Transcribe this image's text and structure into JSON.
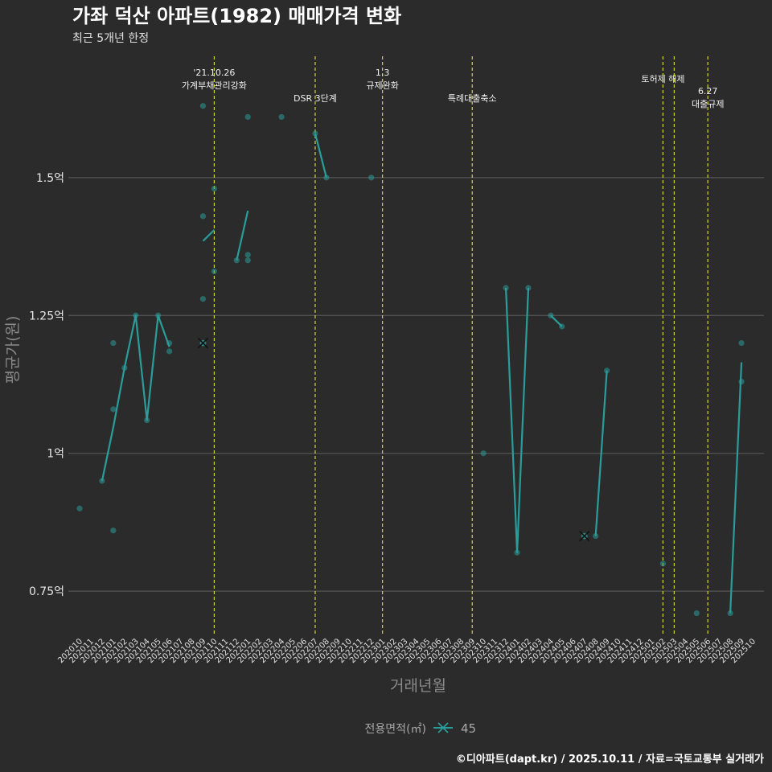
{
  "chart_data": {
    "type": "line",
    "title": "가좌 덕산 아파트(1982) 매매가격 변화",
    "subtitle": "최근 5개년 한정",
    "xlabel": "거래년월",
    "ylabel": "평균가(원)",
    "ylim": [
      0.67,
      1.72
    ],
    "y_ticks": [
      {
        "value": 0.75,
        "label": "0.75억"
      },
      {
        "value": 1.0,
        "label": "1억"
      },
      {
        "value": 1.25,
        "label": "1.25억"
      },
      {
        "value": 1.5,
        "label": "1.5억"
      }
    ],
    "categories": [
      "202010",
      "202011",
      "202012",
      "202101",
      "202102",
      "202103",
      "202104",
      "202105",
      "202106",
      "202107",
      "202108",
      "202109",
      "202110",
      "202111",
      "202112",
      "202201",
      "202202",
      "202203",
      "202204",
      "202205",
      "202206",
      "202207",
      "202208",
      "202209",
      "202210",
      "202211",
      "202212",
      "202301",
      "202302",
      "202303",
      "202304",
      "202305",
      "202306",
      "202307",
      "202308",
      "202309",
      "202310",
      "202311",
      "202312",
      "202401",
      "202402",
      "202403",
      "202404",
      "202405",
      "202406",
      "202407",
      "202408",
      "202409",
      "202410",
      "202411",
      "202412",
      "202501",
      "202502",
      "202503",
      "202504",
      "202505",
      "202506",
      "202507",
      "202508",
      "202509",
      "202510"
    ],
    "series": [
      {
        "name": "45",
        "points": [
          {
            "x": "202010",
            "y": 0.9
          },
          {
            "x": "202012",
            "y": 0.95
          },
          {
            "x": "202101",
            "y": 1.2
          },
          {
            "x": "202101",
            "y": 1.08
          },
          {
            "x": "202101",
            "y": 0.86
          },
          {
            "x": "202102",
            "y": 1.155
          },
          {
            "x": "202103",
            "y": 1.25
          },
          {
            "x": "202104",
            "y": 1.06
          },
          {
            "x": "202105",
            "y": 1.25
          },
          {
            "x": "202106",
            "y": 1.2
          },
          {
            "x": "202106",
            "y": 1.185
          },
          {
            "x": "202109",
            "y": 1.63
          },
          {
            "x": "202109",
            "y": 1.43
          },
          {
            "x": "202109",
            "y": 1.28
          },
          {
            "x": "202109",
            "y": 1.2
          },
          {
            "x": "202110",
            "y": 1.48
          },
          {
            "x": "202110",
            "y": 1.33
          },
          {
            "x": "202112",
            "y": 1.35
          },
          {
            "x": "202201",
            "y": 1.61
          },
          {
            "x": "202201",
            "y": 1.36
          },
          {
            "x": "202201",
            "y": 1.35
          },
          {
            "x": "202204",
            "y": 1.61
          },
          {
            "x": "202207",
            "y": 1.58
          },
          {
            "x": "202208",
            "y": 1.5
          },
          {
            "x": "202212",
            "y": 1.5
          },
          {
            "x": "202310",
            "y": 1.0
          },
          {
            "x": "202312",
            "y": 1.3
          },
          {
            "x": "202401",
            "y": 0.82
          },
          {
            "x": "202402",
            "y": 1.3
          },
          {
            "x": "202404",
            "y": 1.25
          },
          {
            "x": "202405",
            "y": 1.23
          },
          {
            "x": "202407",
            "y": 0.85
          },
          {
            "x": "202408",
            "y": 0.85
          },
          {
            "x": "202409",
            "y": 1.15
          },
          {
            "x": "202502",
            "y": 0.8
          },
          {
            "x": "202505",
            "y": 0.71
          },
          {
            "x": "202508",
            "y": 0.71
          },
          {
            "x": "202509",
            "y": 1.2
          },
          {
            "x": "202509",
            "y": 1.13
          }
        ],
        "line": [
          {
            "x": "202012",
            "y": 0.95
          },
          {
            "x": "202101",
            "y": 1.047
          },
          {
            "x": "202102",
            "y": 1.155
          },
          {
            "x": "202103",
            "y": 1.25
          },
          {
            "x": "202104",
            "y": 1.06
          },
          {
            "x": "202105",
            "y": 1.25
          },
          {
            "x": "202106",
            "y": 1.193
          },
          null,
          {
            "x": "202109",
            "y": 1.385
          },
          {
            "x": "202110",
            "y": 1.405
          },
          null,
          {
            "x": "202112",
            "y": 1.35
          },
          {
            "x": "202201",
            "y": 1.44
          },
          null,
          {
            "x": "202207",
            "y": 1.58
          },
          {
            "x": "202208",
            "y": 1.5
          },
          null,
          {
            "x": "202312",
            "y": 1.3
          },
          {
            "x": "202401",
            "y": 0.82
          },
          {
            "x": "202402",
            "y": 1.3
          },
          null,
          {
            "x": "202404",
            "y": 1.25
          },
          {
            "x": "202405",
            "y": 1.23
          },
          null,
          {
            "x": "202408",
            "y": 0.85
          },
          {
            "x": "202409",
            "y": 1.15
          },
          null,
          {
            "x": "202508",
            "y": 0.71
          },
          {
            "x": "202509",
            "y": 1.165
          }
        ],
        "cross_markers": [
          {
            "x": "202109",
            "y": 1.2
          },
          {
            "x": "202407",
            "y": 0.85
          }
        ]
      }
    ],
    "events": [
      {
        "x": "202110",
        "lines": [
          "'21.10.26",
          "가계부채관리강화"
        ],
        "level": 0
      },
      {
        "x": "202207",
        "lines": [
          "DSR 3단계"
        ],
        "level": 1
      },
      {
        "x": "202301",
        "lines": [
          "1.3",
          "규제완화"
        ],
        "level": 0
      },
      {
        "x": "202309",
        "lines": [
          "특례대출축소"
        ],
        "level": 1
      },
      {
        "x": "202502",
        "lines": [
          "토허제 해제"
        ],
        "level": 0
      },
      {
        "x": "202503",
        "lines": [],
        "level": 0
      },
      {
        "x": "202506",
        "lines": [
          "6.27",
          "대출규제"
        ],
        "level": 1
      }
    ],
    "legend": {
      "title": "전용면적(㎡)",
      "items": [
        "45"
      ],
      "position": "bottom"
    },
    "colors": {
      "background": "#2b2b2b",
      "grid": "#555555",
      "series": "#2a9d9a",
      "event_line": "#d4d435"
    }
  },
  "caption": "©디아파트(dapt.kr) / 2025.10.11 / 자료=국토교통부 실거래가"
}
